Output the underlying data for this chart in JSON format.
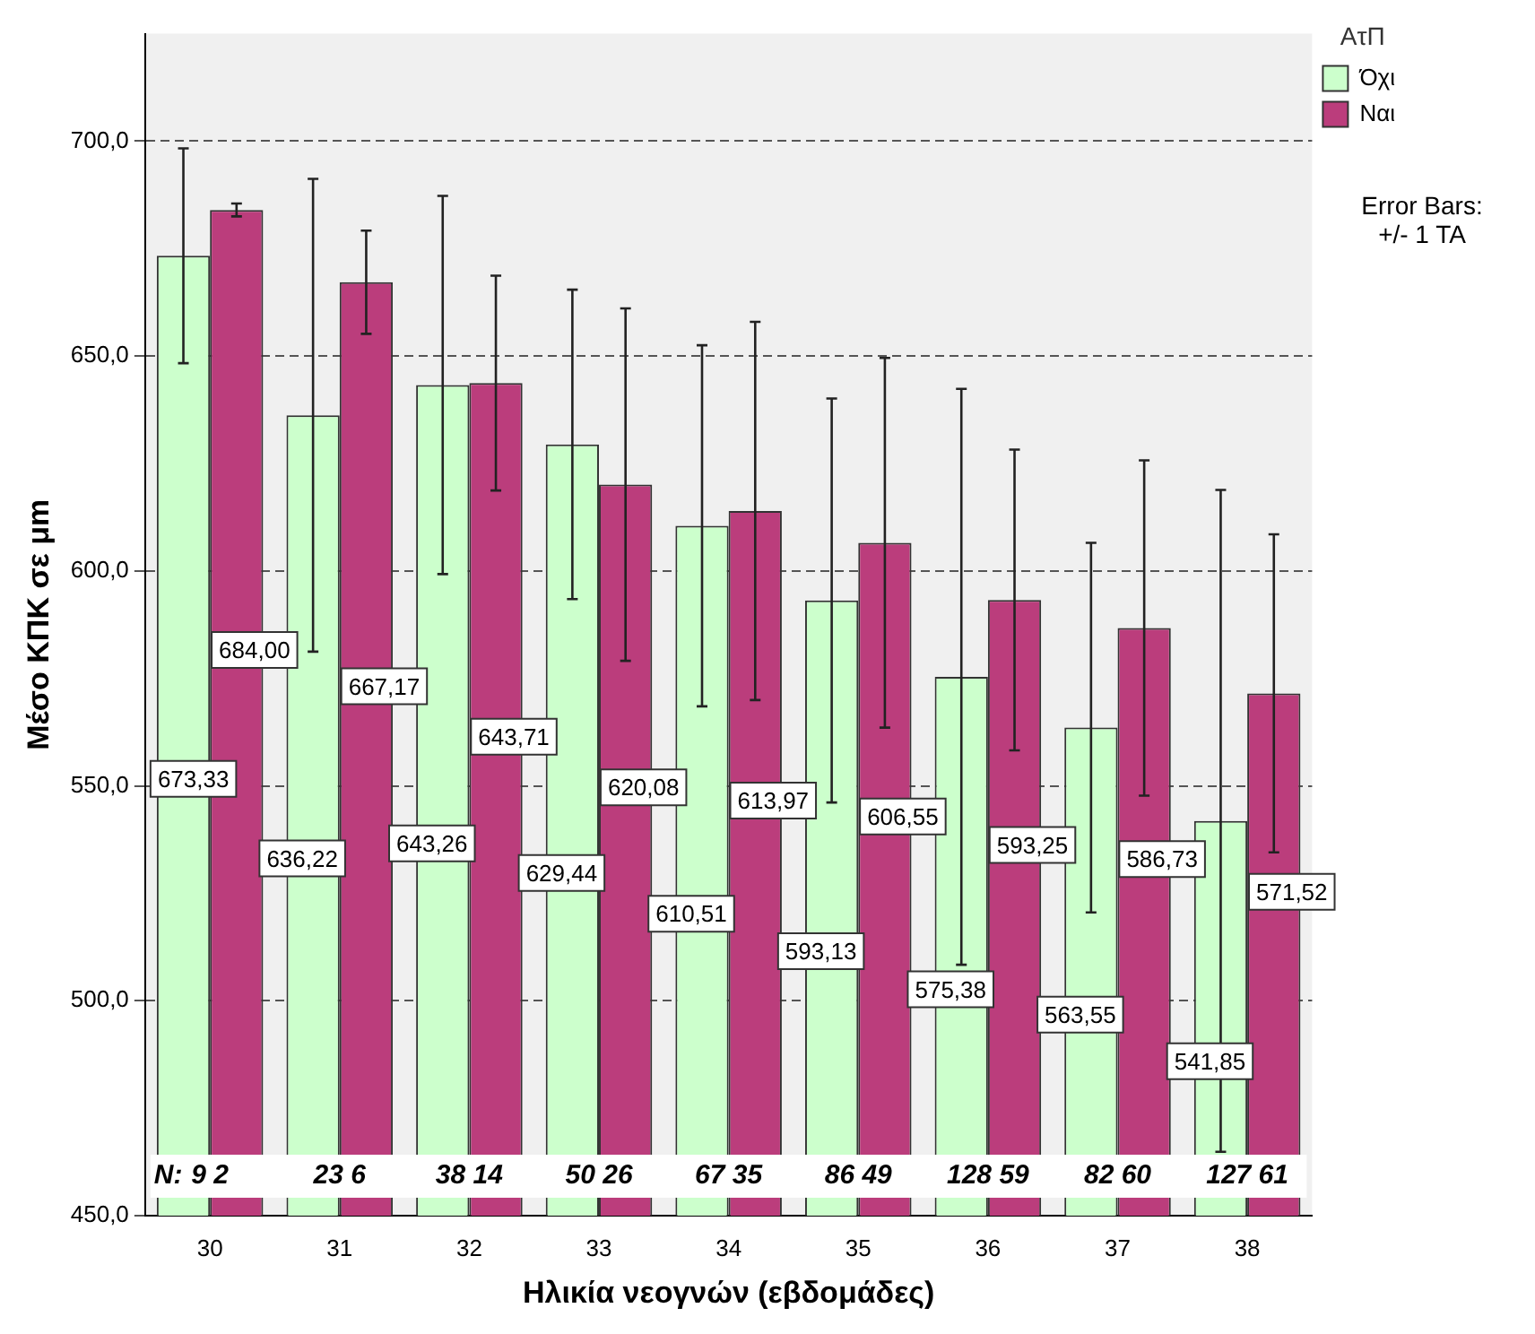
{
  "chart_data": {
    "type": "bar",
    "xlabel": "Ηλικία νεογνών (εβδομάδες)",
    "ylabel": "Μέσο ΚΠΚ σε μm",
    "legend_title": "ΑτΠ",
    "categories": [
      "30",
      "31",
      "32",
      "33",
      "34",
      "35",
      "36",
      "37",
      "38"
    ],
    "series": [
      {
        "name": "Όχι",
        "color": "#ccffcc",
        "values": [
          673.33,
          636.22,
          643.26,
          629.44,
          610.51,
          593.13,
          575.38,
          563.55,
          541.85
        ],
        "value_labels": [
          "673,33",
          "636,22",
          "643,26",
          "629,44",
          "610,51",
          "593,13",
          "575,38",
          "563,55",
          "541,85"
        ],
        "errors": [
          25,
          55,
          44,
          36,
          42,
          47,
          67,
          43,
          77
        ]
      },
      {
        "name": "Ναι",
        "color": "#bb3d7c",
        "values": [
          684.0,
          667.17,
          643.71,
          620.08,
          613.97,
          606.55,
          593.25,
          586.73,
          571.52
        ],
        "value_labels": [
          "684,00",
          "667,17",
          "643,71",
          "620,08",
          "613,97",
          "606,55",
          "593,25",
          "586,73",
          "571,52"
        ],
        "errors": [
          1.5,
          12,
          25,
          41,
          44,
          43,
          35,
          39,
          37
        ]
      }
    ],
    "ylim": [
      450,
      725
    ],
    "yticks": [
      {
        "value": 450,
        "label": "450,0"
      },
      {
        "value": 500,
        "label": "500,0"
      },
      {
        "value": 550,
        "label": "550,0"
      },
      {
        "value": 600,
        "label": "600,0"
      },
      {
        "value": 650,
        "label": "650,0"
      },
      {
        "value": 700,
        "label": "700,0"
      }
    ],
    "grid": "y",
    "legend": "top right",
    "annotations": [
      "N:",
      "Error Bars:",
      "+/- 1 TA",
      {
        "text": "9 2",
        "x": "30"
      },
      {
        "text": "23 6",
        "x": "31"
      },
      {
        "text": "38 14",
        "x": "32"
      },
      {
        "text": "50 26",
        "x": "33"
      },
      {
        "text": "67 35",
        "x": "34"
      },
      {
        "text": "86 49",
        "x": "35"
      },
      {
        "text": "128 59",
        "x": "36"
      },
      {
        "text": "82 60",
        "x": "37"
      },
      {
        "text": "127 61",
        "x": "38"
      }
    ]
  }
}
